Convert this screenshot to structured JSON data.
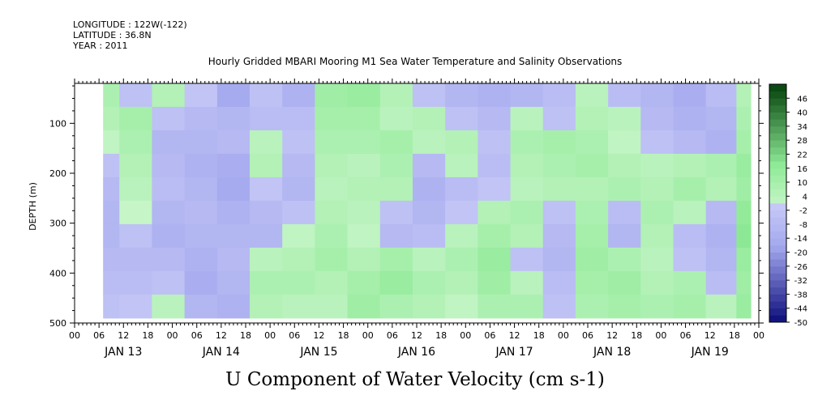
{
  "header_lines": [
    "LONGITUDE : 122W(-122)",
    "LATITUDE : 36.8N",
    "YEAR : 2011"
  ],
  "title": "Hourly Gridded MBARI Mooring M1 Sea Water Temperature and Salinity Observations",
  "colorbar_title": "U Component of Water Velocity (cm s-1)",
  "chart_data": {
    "type": "heatmap",
    "title": "Hourly Gridded MBARI Mooring M1 Sea Water Temperature and Salinity Observations",
    "ylabel": "DEPTH (m)",
    "ylim": [
      500,
      20
    ],
    "y_ticks": [
      100,
      200,
      300,
      400,
      500
    ],
    "x_range_hours": [
      0,
      168
    ],
    "x_tick_labels": [
      "00",
      "06",
      "12",
      "18",
      "00",
      "06",
      "12",
      "18",
      "00",
      "06",
      "12",
      "18",
      "00",
      "06",
      "12",
      "18",
      "00",
      "06",
      "12",
      "18",
      "00",
      "06",
      "12",
      "18",
      "00",
      "06",
      "12",
      "18",
      "00"
    ],
    "day_labels": [
      "JAN 13",
      "JAN 14",
      "JAN 15",
      "JAN 16",
      "JAN 17",
      "JAN 18",
      "JAN 19"
    ],
    "data_start_hour": 7,
    "data_end_hour": 166,
    "depth_top": 20,
    "depth_bottom": 490,
    "colorbar_levels": [
      46,
      40,
      34,
      28,
      22,
      16,
      10,
      4,
      -2,
      -8,
      -14,
      -20,
      -26,
      -32,
      -38,
      -44,
      -50
    ],
    "colorbar_range": [
      -50,
      52
    ],
    "colors": {
      "neg_light": "#c6c8f6",
      "neg_mid": "#a3a8ee",
      "neg_dark": "#0c0c7a",
      "pos_light": "#c6f5c8",
      "pos_mid": "#8eea96",
      "pos_dark": "#0b4a12"
    },
    "columns": [
      {
        "x": 7,
        "u": [
          8,
          6,
          2,
          -4,
          -8,
          -10,
          -10,
          -8,
          -6,
          -4
        ]
      },
      {
        "x": 15,
        "u": [
          -4,
          10,
          8,
          6,
          4,
          0,
          -4,
          -8,
          -6,
          -2
        ]
      },
      {
        "x": 23,
        "u": [
          6,
          -4,
          -10,
          -8,
          -6,
          -10,
          -12,
          -8,
          -4,
          4
        ]
      },
      {
        "x": 31,
        "u": [
          -2,
          -8,
          -10,
          -12,
          -10,
          -8,
          -10,
          -12,
          -14,
          -10
        ]
      },
      {
        "x": 39,
        "u": [
          -16,
          -10,
          -8,
          -14,
          -16,
          -12,
          -10,
          -8,
          -10,
          -12
        ]
      },
      {
        "x": 47,
        "u": [
          -4,
          -6,
          4,
          6,
          -2,
          -8,
          -10,
          4,
          8,
          6
        ]
      },
      {
        "x": 55,
        "u": [
          -12,
          -6,
          -4,
          -8,
          -10,
          -4,
          2,
          6,
          8,
          4
        ]
      },
      {
        "x": 63,
        "u": [
          12,
          10,
          8,
          6,
          4,
          6,
          8,
          10,
          6,
          4
        ]
      },
      {
        "x": 71,
        "u": [
          14,
          10,
          8,
          4,
          6,
          4,
          2,
          6,
          10,
          12
        ]
      },
      {
        "x": 79,
        "u": [
          6,
          4,
          10,
          8,
          6,
          -4,
          -8,
          10,
          14,
          8
        ]
      },
      {
        "x": 87,
        "u": [
          -4,
          6,
          4,
          -8,
          -12,
          -10,
          -6,
          4,
          8,
          6
        ]
      },
      {
        "x": 95,
        "u": [
          -10,
          -4,
          6,
          4,
          -6,
          -2,
          4,
          8,
          6,
          2
        ]
      },
      {
        "x": 103,
        "u": [
          -12,
          -8,
          -4,
          -6,
          -2,
          6,
          10,
          14,
          12,
          8
        ]
      },
      {
        "x": 111,
        "u": [
          -10,
          4,
          8,
          6,
          4,
          8,
          6,
          -4,
          4,
          8
        ]
      },
      {
        "x": 119,
        "u": [
          -6,
          -4,
          10,
          8,
          6,
          -4,
          -8,
          -10,
          -6,
          -4
        ]
      },
      {
        "x": 127,
        "u": [
          4,
          6,
          8,
          10,
          6,
          8,
          10,
          12,
          10,
          8
        ]
      },
      {
        "x": 135,
        "u": [
          -6,
          4,
          2,
          6,
          8,
          -6,
          -10,
          8,
          12,
          10
        ]
      },
      {
        "x": 143,
        "u": [
          -10,
          -8,
          -4,
          4,
          6,
          8,
          6,
          4,
          6,
          8
        ]
      },
      {
        "x": 151,
        "u": [
          -14,
          -12,
          -8,
          6,
          10,
          4,
          -6,
          -4,
          8,
          10
        ]
      },
      {
        "x": 159,
        "u": [
          -6,
          -10,
          -12,
          8,
          6,
          -8,
          -12,
          -10,
          -6,
          4
        ]
      },
      {
        "x": 166,
        "u": [
          6,
          8,
          10,
          14,
          12,
          16,
          18,
          14,
          12,
          14
        ]
      }
    ]
  }
}
